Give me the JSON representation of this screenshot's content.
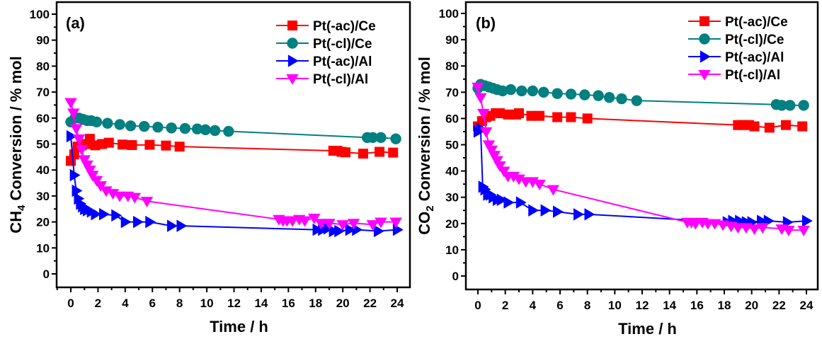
{
  "chart_data": [
    {
      "type": "line",
      "panel_label": "(a)",
      "title": "",
      "xlabel": "Time / h",
      "ylabel": "CH4 Conversion / % mol",
      "ylabel_parts": {
        "pre": "CH",
        "sub": "4",
        "post": " Conversion / % mol"
      },
      "xlim": [
        -1,
        25
      ],
      "ylim": [
        -3.5,
        105
      ],
      "xticks": [
        0,
        2,
        4,
        6,
        8,
        10,
        12,
        14,
        16,
        18,
        20,
        22,
        24
      ],
      "yticks": [
        0,
        10,
        20,
        30,
        40,
        50,
        60,
        70,
        80,
        90,
        100
      ],
      "grid": false,
      "legend_position": "top-right",
      "series": [
        {
          "name": "Pt(-ac)/Ce",
          "color": "#ff0000",
          "marker": "square",
          "x": [
            0.0,
            0.25,
            0.5,
            0.8,
            1.1,
            1.4,
            1.8,
            2.3,
            2.8,
            3.8,
            4.5,
            5.8,
            7.0,
            8.0,
            19.3,
            19.6,
            19.9,
            20.2,
            21.5,
            22.7,
            23.7
          ],
          "y": [
            43.5,
            46,
            49,
            49.5,
            50,
            52,
            49.5,
            50,
            50.5,
            49.8,
            49.6,
            49.7,
            49.4,
            49,
            47.4,
            47.4,
            47,
            46.8,
            46.3,
            47,
            46.7
          ]
        },
        {
          "name": "Pt(-cl)/Ce",
          "color": "#008080",
          "marker": "circle",
          "x": [
            0.0,
            0.3,
            0.6,
            0.9,
            1.2,
            1.5,
            1.9,
            2.7,
            3.6,
            4.4,
            5.4,
            6.4,
            7.4,
            8.4,
            9.3,
            9.9,
            10.6,
            11.6,
            21.8,
            22.2,
            22.8,
            23.9
          ],
          "y": [
            58.5,
            60,
            60,
            59.5,
            59,
            59,
            58.5,
            58,
            57.5,
            57,
            56.8,
            56.5,
            56.2,
            56,
            55.8,
            55.5,
            55.2,
            54.9,
            52.5,
            52.5,
            52.5,
            52
          ]
        },
        {
          "name": "Pt(-ac)/Al",
          "color": "#0000ff",
          "marker": "triangle-right",
          "x": [
            0.0,
            0.25,
            0.4,
            0.55,
            0.7,
            0.85,
            1.0,
            1.2,
            1.5,
            1.8,
            2.4,
            3.3,
            4.0,
            4.9,
            5.8,
            7.4,
            8.1,
            18.1,
            18.5,
            18.9,
            19.3,
            19.7,
            20.5,
            21.0,
            22.6,
            24.0
          ],
          "y": [
            53,
            38,
            32,
            29,
            27,
            26,
            25,
            24.5,
            24,
            23,
            23,
            22.5,
            20,
            20,
            20,
            18.5,
            18.5,
            17,
            17,
            17.5,
            16.5,
            16.5,
            17,
            17,
            16.5,
            17
          ]
        },
        {
          "name": "Pt(-cl)/Al",
          "color": "#ff00ff",
          "marker": "triangle-down",
          "x": [
            0.0,
            0.2,
            0.4,
            0.6,
            0.8,
            1.0,
            1.2,
            1.4,
            1.6,
            1.9,
            2.2,
            2.6,
            3.1,
            3.6,
            4.2,
            4.7,
            5.6,
            15.3,
            15.6,
            15.9,
            16.3,
            16.8,
            17.2,
            17.9,
            18.4,
            19.0,
            20.0,
            20.8,
            22.2,
            22.8,
            23.9
          ],
          "y": [
            66,
            62,
            56,
            52,
            48,
            44,
            42,
            40,
            38,
            36,
            34,
            32,
            31,
            30,
            30,
            29.5,
            28,
            21,
            20.5,
            20.5,
            20.5,
            21,
            20.5,
            21.5,
            19.5,
            19.5,
            19,
            19.5,
            19,
            20,
            20
          ]
        }
      ]
    },
    {
      "type": "line",
      "panel_label": "(b)",
      "title": "",
      "xlabel": "Time / h",
      "ylabel": "CO2 Conversion / % mol",
      "ylabel_parts": {
        "pre": "CO",
        "sub": "2",
        "post": " Conversion / % mol"
      },
      "xlim": [
        -0.9,
        25
      ],
      "ylim": [
        -4.5,
        105
      ],
      "xticks": [
        0,
        2,
        4,
        6,
        8,
        10,
        12,
        14,
        16,
        18,
        20,
        22,
        24
      ],
      "yticks": [
        0,
        10,
        20,
        30,
        40,
        50,
        60,
        70,
        80,
        90,
        100
      ],
      "grid": false,
      "legend_position": "top-right",
      "series": [
        {
          "name": "Pt(-ac)/Ce",
          "color": "#ff0000",
          "marker": "square",
          "x": [
            0.0,
            0.3,
            0.6,
            0.9,
            1.3,
            1.6,
            2.2,
            2.8,
            3.0,
            3.9,
            4.5,
            5.8,
            6.8,
            8.0,
            19.0,
            19.4,
            19.8,
            20.2,
            21.3,
            22.5,
            23.7
          ],
          "y": [
            57,
            59,
            60.5,
            61,
            62,
            62,
            61.5,
            61.5,
            62,
            61,
            61,
            60.5,
            60.5,
            60,
            57.5,
            57.5,
            57.5,
            57,
            56.5,
            57.5,
            57
          ]
        },
        {
          "name": "Pt(-cl)/Ce",
          "color": "#008080",
          "marker": "circle",
          "x": [
            0.0,
            0.2,
            0.5,
            0.8,
            1.1,
            1.4,
            1.8,
            2.4,
            3.2,
            4.0,
            4.8,
            5.8,
            6.8,
            7.8,
            8.8,
            9.6,
            10.5,
            11.6,
            21.8,
            22.2,
            22.8,
            23.8
          ],
          "y": [
            71.5,
            73,
            72.5,
            72,
            71.5,
            71,
            70.5,
            71,
            70.5,
            70.5,
            70,
            69.5,
            69.3,
            69,
            68.7,
            68,
            67.5,
            66.8,
            65.3,
            65,
            65,
            65
          ]
        },
        {
          "name": "Pt(-ac)/Al",
          "color": "#0000ff",
          "marker": "triangle-right",
          "x": [
            0.0,
            0.2,
            0.35,
            0.5,
            0.7,
            0.9,
            1.1,
            1.4,
            1.7,
            2.2,
            3.1,
            4.0,
            4.9,
            5.8,
            7.3,
            8.1,
            18.2,
            18.6,
            19.1,
            19.6,
            20.0,
            20.7,
            21.2,
            22.6,
            24.0
          ],
          "y": [
            55,
            56,
            34,
            33,
            31,
            31,
            30,
            29,
            29,
            28,
            28,
            25,
            25,
            24.5,
            23.5,
            23.5,
            20.5,
            21,
            21,
            20.5,
            20.5,
            21,
            21,
            20.5,
            21
          ]
        },
        {
          "name": "Pt(-cl)/Al",
          "color": "#ff00ff",
          "marker": "triangle-down",
          "x": [
            0.0,
            0.2,
            0.4,
            0.6,
            0.8,
            1.0,
            1.2,
            1.4,
            1.6,
            1.9,
            2.2,
            2.6,
            3.0,
            3.5,
            4.0,
            4.5,
            5.5,
            15.3,
            15.6,
            15.9,
            16.4,
            16.8,
            17.3,
            17.9,
            18.5,
            19.0,
            19.6,
            20.2,
            20.8,
            22.2,
            22.7,
            23.8
          ],
          "y": [
            72,
            68,
            62,
            55,
            50,
            48,
            46,
            44,
            42,
            40,
            38,
            38,
            37,
            36,
            36,
            35,
            33,
            20.5,
            20.5,
            20,
            20.5,
            20,
            20,
            19.5,
            19,
            18.5,
            18.5,
            18,
            18.5,
            18,
            17.5,
            17.5
          ]
        }
      ]
    }
  ]
}
